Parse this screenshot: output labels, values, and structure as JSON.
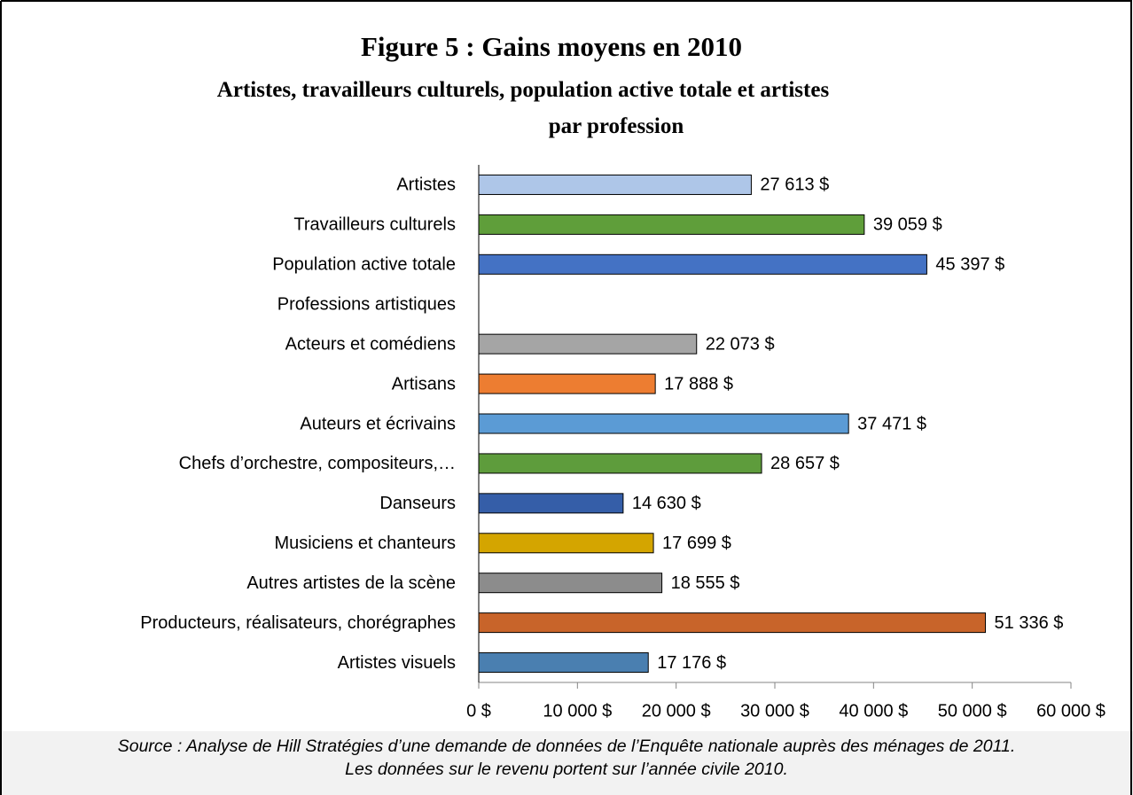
{
  "chart_data": {
    "type": "bar",
    "orientation": "horizontal",
    "title": "Figure 5 : Gains moyens en 2010",
    "subtitle": [
      "Artistes, travailleurs culturels, population active totale et artistes",
      "par profession"
    ],
    "categories": [
      "Artistes",
      "Travailleurs culturels",
      "Population active totale",
      "Professions artistiques",
      "Acteurs et comédiens",
      "Artisans",
      "Auteurs et écrivains",
      "Chefs d’orchestre, compositeurs,…",
      "Danseurs",
      "Musiciens et chanteurs",
      "Autres artistes de la scène",
      "Producteurs, réalisateurs, chorégraphes",
      "Artistes visuels"
    ],
    "values": [
      27613,
      39059,
      45397,
      null,
      22073,
      17888,
      37471,
      28657,
      14630,
      17699,
      18555,
      51336,
      17176
    ],
    "value_labels": [
      "27 613 $",
      "39 059 $",
      "45 397 $",
      null,
      "22 073 $",
      "17 888 $",
      "37 471 $",
      "28 657 $",
      "14 630 $",
      "17 699 $",
      "18 555 $",
      "51 336 $",
      "17 176 $"
    ],
    "colors": [
      "#aec6e8",
      "#5f9e3a",
      "#4472c4",
      null,
      "#a5a5a5",
      "#ed7d31",
      "#5b9bd5",
      "#5e9c3c",
      "#355ea8",
      "#d4a500",
      "#8c8c8c",
      "#c8642a",
      "#4a7fb0"
    ],
    "xlim": [
      0,
      60000
    ],
    "xticks": [
      {
        "value": 0,
        "label": "0 $"
      },
      {
        "value": 10000,
        "label": "10 000 $"
      },
      {
        "value": 20000,
        "label": "20 000 $"
      },
      {
        "value": 30000,
        "label": "30 000 $"
      },
      {
        "value": 40000,
        "label": "40 000 $"
      },
      {
        "value": 50000,
        "label": "50 000 $"
      },
      {
        "value": 60000,
        "label": "60 000 $"
      }
    ],
    "grid": false,
    "source": [
      "Source : Analyse de Hill Stratégies d’une demande de données de l’Enquête nationale auprès des ménages de 2011.",
      "Les données sur le revenu portent sur l’année civile 2010."
    ]
  }
}
